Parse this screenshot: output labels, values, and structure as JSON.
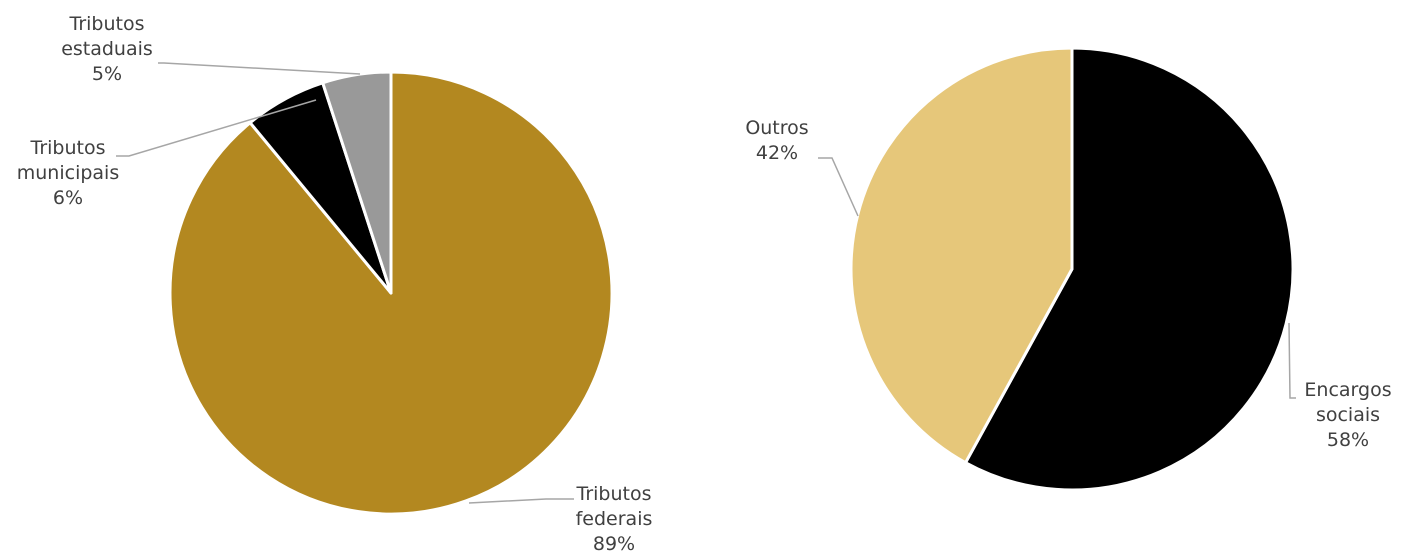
{
  "chart_data": [
    {
      "type": "pie",
      "title": "",
      "start_angle_deg": 0,
      "direction": "clockwise",
      "slices": [
        {
          "name": "Tributos federais",
          "label_lines": [
            "Tributos",
            "federais"
          ],
          "value": 89,
          "pct_label": "89%",
          "color": "#B38820"
        },
        {
          "name": "Tributos municipais",
          "label_lines": [
            "Tributos",
            "municipais"
          ],
          "value": 6,
          "pct_label": "6%",
          "color": "#000000"
        },
        {
          "name": "Tributos estaduais",
          "label_lines": [
            "Tributos",
            "estaduais"
          ],
          "value": 5,
          "pct_label": "5%",
          "color": "#999999"
        }
      ]
    },
    {
      "type": "pie",
      "title": "",
      "start_angle_deg": 0,
      "direction": "clockwise",
      "slices": [
        {
          "name": "Encargos sociais",
          "label_lines": [
            "Encargos",
            "sociais"
          ],
          "value": 58,
          "pct_label": "58%",
          "color": "#000000"
        },
        {
          "name": "Outros",
          "label_lines": [
            "Outros"
          ],
          "value": 42,
          "pct_label": "42%",
          "color": "#E6C77A"
        }
      ]
    }
  ]
}
